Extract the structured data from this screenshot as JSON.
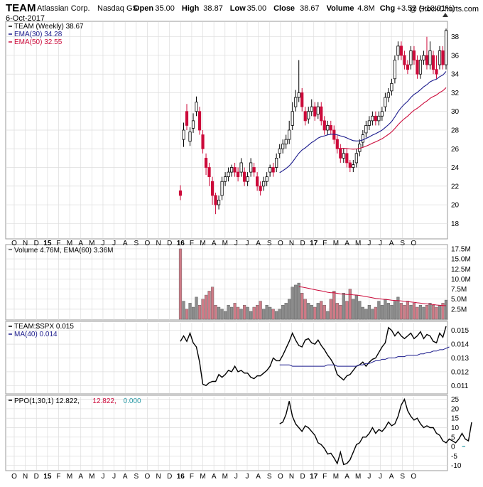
{
  "header": {
    "ticker": "TEAM",
    "company": "Atlassian Corp.",
    "exchange": "Nasdaq GS",
    "date": "6-Oct-2017",
    "watermark": "@ StockCharts.com",
    "stats": [
      {
        "label": "Open",
        "value": "35.00"
      },
      {
        "label": "High",
        "value": "38.87"
      },
      {
        "label": "Low",
        "value": "35.00"
      },
      {
        "label": "Close",
        "value": "38.67"
      },
      {
        "label": "Volume",
        "value": "4.8M"
      },
      {
        "label": "Chg",
        "value": "+3.52 (+10.01%)"
      }
    ],
    "chg_icon": "triangle-up-icon"
  },
  "colors": {
    "up": "#000000",
    "down": "#cc0a3a",
    "ema30": "#1a1a8c",
    "ema50": "#cc0a3a",
    "vol_up": "#8c8c8c",
    "vol_down": "#cf7b87",
    "ppo_signal": "#cc0a3a",
    "ppo_hist": "#2a9aa6"
  },
  "x_axis": {
    "months_top": [
      "O",
      "N",
      "D",
      "15",
      "F",
      "M",
      "A",
      "M",
      "J",
      "J",
      "A",
      "S",
      "O",
      "N",
      "D",
      "16",
      "F",
      "M",
      "A",
      "M",
      "J",
      "J",
      "A",
      "S",
      "O",
      "N",
      "D",
      "17",
      "F",
      "M",
      "A",
      "M",
      "J",
      "J",
      "A",
      "S",
      "O"
    ],
    "months_bottom": [
      "O",
      "N",
      "D",
      "15",
      "F",
      "M",
      "A",
      "M",
      "J",
      "J",
      "A",
      "S",
      "O",
      "N",
      "D",
      "16",
      "F",
      "M",
      "A",
      "M",
      "J",
      "J",
      "A",
      "S",
      "O",
      "N",
      "D",
      "17",
      "F",
      "M",
      "A",
      "M",
      "J",
      "J",
      "A",
      "S",
      "O"
    ],
    "bold": [
      "15",
      "16",
      "17"
    ]
  },
  "legends": {
    "price": [
      {
        "label": "TEAM (Weekly) 38.67",
        "color": "#000000"
      },
      {
        "label": "EMA(30) 34.28",
        "color": "#1a1a8c"
      },
      {
        "label": "EMA(50) 32.55",
        "color": "#cc0a3a"
      }
    ],
    "volume": "Volume 4.76M, EMA(60) 3.36M",
    "ratio": [
      {
        "label": "TEAM:$SPX 0.015",
        "color": "#000000"
      },
      {
        "label": "MA(40) 0.014",
        "color": "#1a1a8c"
      }
    ],
    "ppo": [
      {
        "label": "PPO(1,30,1) 12.822,",
        "color": "#000000"
      },
      {
        "label": "12.822,",
        "color": "#cc0a3a"
      },
      {
        "label": "0.000",
        "color": "#2a9aa6"
      }
    ]
  },
  "chart_data": [
    {
      "type": "candlestick",
      "name_label": "TEAM (Weekly)",
      "ylim": [
        16.5,
        39.5
      ],
      "y_ticks": [
        "18",
        "20",
        "22",
        "24",
        "26",
        "28",
        "30",
        "32",
        "34",
        "36",
        "38"
      ],
      "weeks_start": "2015-12-11",
      "close": [
        21.0,
        28.0,
        28.5,
        27.8,
        29.0,
        31.0,
        28.0,
        26.0,
        24.0,
        23.0,
        21.0,
        20.0,
        20.5,
        22.5,
        23.0,
        23.5,
        24.0,
        23.5,
        23.0,
        24.5,
        22.5,
        23.0,
        24.5,
        23.5,
        22.0,
        21.5,
        22.5,
        23.0,
        24.0,
        23.5,
        25.0,
        26.0,
        26.5,
        27.0,
        28.0,
        30.0,
        31.5,
        32.0,
        30.5,
        29.0,
        30.0,
        30.5,
        29.5,
        30.5,
        29.0,
        28.0,
        28.5,
        28.0,
        27.0,
        26.0,
        25.0,
        25.5,
        24.5,
        24.0,
        24.3,
        25.5,
        26.5,
        27.5,
        28.5,
        29.0,
        29.5,
        29.0,
        29.5,
        30.0,
        31.5,
        32.0,
        33.0,
        35.5,
        37.0,
        36.0,
        35.0,
        34.5,
        36.5,
        35.5,
        34.0,
        35.5,
        36.0,
        35.0,
        36.5,
        34.5,
        34.0,
        36.5,
        35.0,
        38.67
      ],
      "open_delta": [
        0.5,
        -1,
        1.5,
        -1,
        -0.8,
        -1,
        2,
        1.5,
        1,
        1,
        1.5,
        1,
        -0.5,
        -1.5,
        -0.5,
        -0.5,
        -0.5,
        0.5,
        0.5,
        -1,
        1,
        -0.5,
        -1,
        0.5,
        1,
        0.5,
        -0.5,
        -0.5,
        -0.5,
        0.5,
        -1,
        -0.5,
        -0.5,
        -0.5,
        -1,
        -1.5,
        -1,
        -0.5,
        1.5,
        1,
        -0.8,
        -0.5,
        1,
        -0.8,
        1.5,
        1,
        -0.5,
        0.5,
        1,
        1,
        1,
        -0.5,
        1,
        0.5,
        -0.3,
        -1,
        -0.8,
        -0.8,
        -0.8,
        -0.5,
        -0.5,
        0.5,
        -0.5,
        -0.5,
        -1,
        -0.5,
        -0.8,
        -2,
        -1,
        1,
        1,
        0.5,
        -1.5,
        1,
        1.5,
        -1.5,
        -0.5,
        1,
        -1.5,
        1.5,
        0.5,
        -1.5,
        1.5,
        -3.67
      ],
      "wick_high": [
        0.6,
        0.8,
        0.8,
        0.5,
        0.8,
        0.6,
        0.5,
        0.5,
        0.5,
        0.5,
        0.5,
        0.3,
        0.5,
        0.5,
        0.5,
        0.5,
        0.3,
        0.5,
        0.5,
        0.5,
        0.5,
        0.5,
        0.5,
        0.5,
        0.5,
        0.5,
        0.5,
        0.5,
        0.3,
        0.5,
        0.5,
        0.5,
        0.5,
        0.5,
        1.0,
        1.0,
        0.8,
        3.5,
        0.5,
        0.5,
        0.5,
        0.8,
        0.5,
        0.5,
        0.5,
        0.5,
        0.5,
        0.5,
        0.5,
        0.5,
        0.5,
        0.5,
        0.5,
        0.3,
        0.5,
        0.5,
        0.5,
        0.5,
        0.5,
        0.5,
        0.5,
        0.5,
        0.5,
        0.5,
        0.5,
        0.5,
        0.5,
        0.5,
        0.5,
        0.5,
        0.5,
        0.5,
        0.5,
        0.5,
        0.5,
        0.5,
        0.5,
        2.0,
        1.0,
        0.5,
        1.5,
        0.5,
        0.5,
        0.2
      ],
      "wick_low": [
        0.5,
        0.8,
        0.5,
        0.5,
        0.5,
        0.5,
        0.5,
        0.5,
        0.8,
        1.0,
        1.0,
        1.0,
        0.5,
        0.5,
        0.5,
        0.5,
        0.5,
        0.5,
        0.5,
        0.5,
        0.5,
        0.5,
        0.5,
        0.5,
        0.5,
        0.5,
        0.5,
        0.5,
        0.5,
        0.5,
        0.5,
        0.5,
        0.5,
        0.5,
        0.5,
        0.5,
        0.5,
        0.5,
        0.5,
        0.5,
        0.5,
        0.5,
        0.5,
        0.5,
        0.5,
        0.5,
        0.5,
        0.5,
        0.5,
        0.5,
        0.5,
        0.5,
        0.5,
        0.5,
        0.5,
        0.5,
        0.5,
        0.5,
        0.5,
        0.5,
        0.5,
        0.5,
        0.5,
        0.5,
        0.5,
        0.5,
        0.5,
        0.5,
        0.5,
        0.5,
        0.5,
        0.5,
        0.5,
        0.5,
        0.5,
        0.5,
        0.5,
        0.5,
        0.5,
        0.5,
        0.5,
        0.5,
        0.5,
        0.5
      ],
      "ema30_start_week": 31,
      "ema50_start_week": 49,
      "ema30_last": 34.28,
      "ema50_last": 32.55
    },
    {
      "type": "bar",
      "name_label": "Volume",
      "ylim": [
        0,
        18.2
      ],
      "y_ticks": [
        "2.5M",
        "5.0M",
        "7.5M",
        "10.0M",
        "12.5M",
        "15.0M",
        "17.5M"
      ],
      "values_m": [
        17.5,
        4.5,
        2.5,
        4.0,
        3.0,
        5.5,
        3.5,
        5.0,
        6.0,
        7.0,
        8.0,
        3.5,
        3.0,
        2.5,
        2.0,
        3.5,
        3.0,
        4.0,
        3.0,
        2.5,
        3.5,
        3.0,
        2.0,
        3.0,
        3.5,
        4.5,
        2.5,
        3.5,
        3.0,
        2.5,
        2.0,
        2.5,
        3.5,
        4.0,
        5.0,
        8.0,
        8.5,
        9.0,
        6.5,
        5.0,
        4.0,
        3.5,
        3.0,
        4.0,
        4.5,
        3.5,
        2.0,
        5.0,
        7.0,
        4.0,
        3.5,
        6.5,
        4.5,
        7.5,
        5.0,
        6.0,
        4.5,
        3.0,
        2.5,
        3.5,
        2.5,
        3.0,
        4.5,
        3.5,
        5.0,
        4.0,
        3.5,
        4.5,
        5.5,
        4.0,
        3.5,
        4.5,
        3.5,
        4.0,
        3.0,
        3.5,
        3.0,
        3.5,
        4.0,
        3.5,
        3.0,
        3.5,
        4.0,
        4.76
      ],
      "ema60_start_week": 37,
      "ema60_last": 3.36
    },
    {
      "type": "line",
      "name_label": "TEAM:$SPX",
      "ylim": [
        0.0105,
        0.0155
      ],
      "y_ticks": [
        "0.011",
        "0.012",
        "0.013",
        "0.014",
        "0.015"
      ],
      "values": [
        0.0142,
        0.0146,
        0.0142,
        0.0148,
        0.0141,
        0.0138,
        0.0127,
        0.0111,
        0.011,
        0.0112,
        0.0113,
        0.0113,
        0.0118,
        0.0116,
        0.0118,
        0.0121,
        0.012,
        0.0124,
        0.012,
        0.0121,
        0.0119,
        0.0119,
        0.0116,
        0.0115,
        0.0117,
        0.0117,
        0.0119,
        0.0121,
        0.0124,
        0.013,
        0.0128,
        0.0128,
        0.0132,
        0.0137,
        0.0142,
        0.0148,
        0.0143,
        0.0139,
        0.0138,
        0.0143,
        0.0144,
        0.0141,
        0.014,
        0.0143,
        0.0139,
        0.0136,
        0.0132,
        0.0129,
        0.0125,
        0.0118,
        0.0116,
        0.0114,
        0.0117,
        0.0118,
        0.0121,
        0.0124,
        0.0125,
        0.0127,
        0.0124,
        0.0127,
        0.0129,
        0.013,
        0.0134,
        0.0138,
        0.0141,
        0.0152,
        0.015,
        0.0146,
        0.0149,
        0.0146,
        0.0144,
        0.0146,
        0.0148,
        0.0144,
        0.0146,
        0.0149,
        0.0144,
        0.0147,
        0.0146,
        0.0142,
        0.0141,
        0.0148,
        0.0145,
        0.0153
      ],
      "ma40_start_week": 31,
      "ma40_values": [
        0.0125,
        0.0125,
        0.0125,
        0.0125,
        0.0124,
        0.0124,
        0.0124,
        0.0124,
        0.0124,
        0.0124,
        0.0124,
        0.0124,
        0.0124,
        0.0124,
        0.0124,
        0.0125,
        0.0125,
        0.0125,
        0.0124,
        0.0124,
        0.0124,
        0.0124,
        0.0124,
        0.0124,
        0.0124,
        0.0125,
        0.0125,
        0.0126,
        0.0126,
        0.0127,
        0.0128,
        0.0128,
        0.0129,
        0.0129,
        0.013,
        0.013,
        0.013,
        0.0131,
        0.0131,
        0.0131,
        0.0132,
        0.0132,
        0.0132,
        0.0132,
        0.0133,
        0.0133,
        0.0134,
        0.0134,
        0.0135,
        0.0135,
        0.0136,
        0.0136,
        0.0137,
        0.0138
      ]
    },
    {
      "type": "line",
      "name_label": "PPO(1,30,1)",
      "ylim": [
        -12,
        26
      ],
      "y_ticks": [
        "-10",
        "-5",
        "0",
        "5",
        "10",
        "15",
        "20",
        "25"
      ],
      "start_week": 31,
      "values": [
        12.0,
        13.0,
        17.0,
        24.0,
        16.0,
        12.0,
        10.0,
        8.0,
        11.0,
        10.0,
        8.0,
        6.0,
        2.0,
        1.0,
        -1.0,
        -4.0,
        -3.5,
        -6.0,
        -9.0,
        -3.0,
        -9.5,
        -9.0,
        -7.0,
        -3.0,
        1.0,
        2.0,
        5.0,
        5.0,
        7.0,
        10.0,
        7.0,
        9.0,
        8.0,
        10.0,
        13.0,
        11.0,
        12.0,
        16.0,
        22.0,
        25.0,
        19.0,
        16.0,
        14.0,
        15.0,
        12.0,
        10.0,
        11.0,
        10.0,
        10.0,
        7.0,
        6.0,
        3.0,
        2.0,
        4.0,
        3.0,
        2.0,
        4.0,
        7.0,
        4.0,
        3.0,
        12.822
      ],
      "signal_last": 12.822,
      "histogram_last": 0.0
    }
  ]
}
